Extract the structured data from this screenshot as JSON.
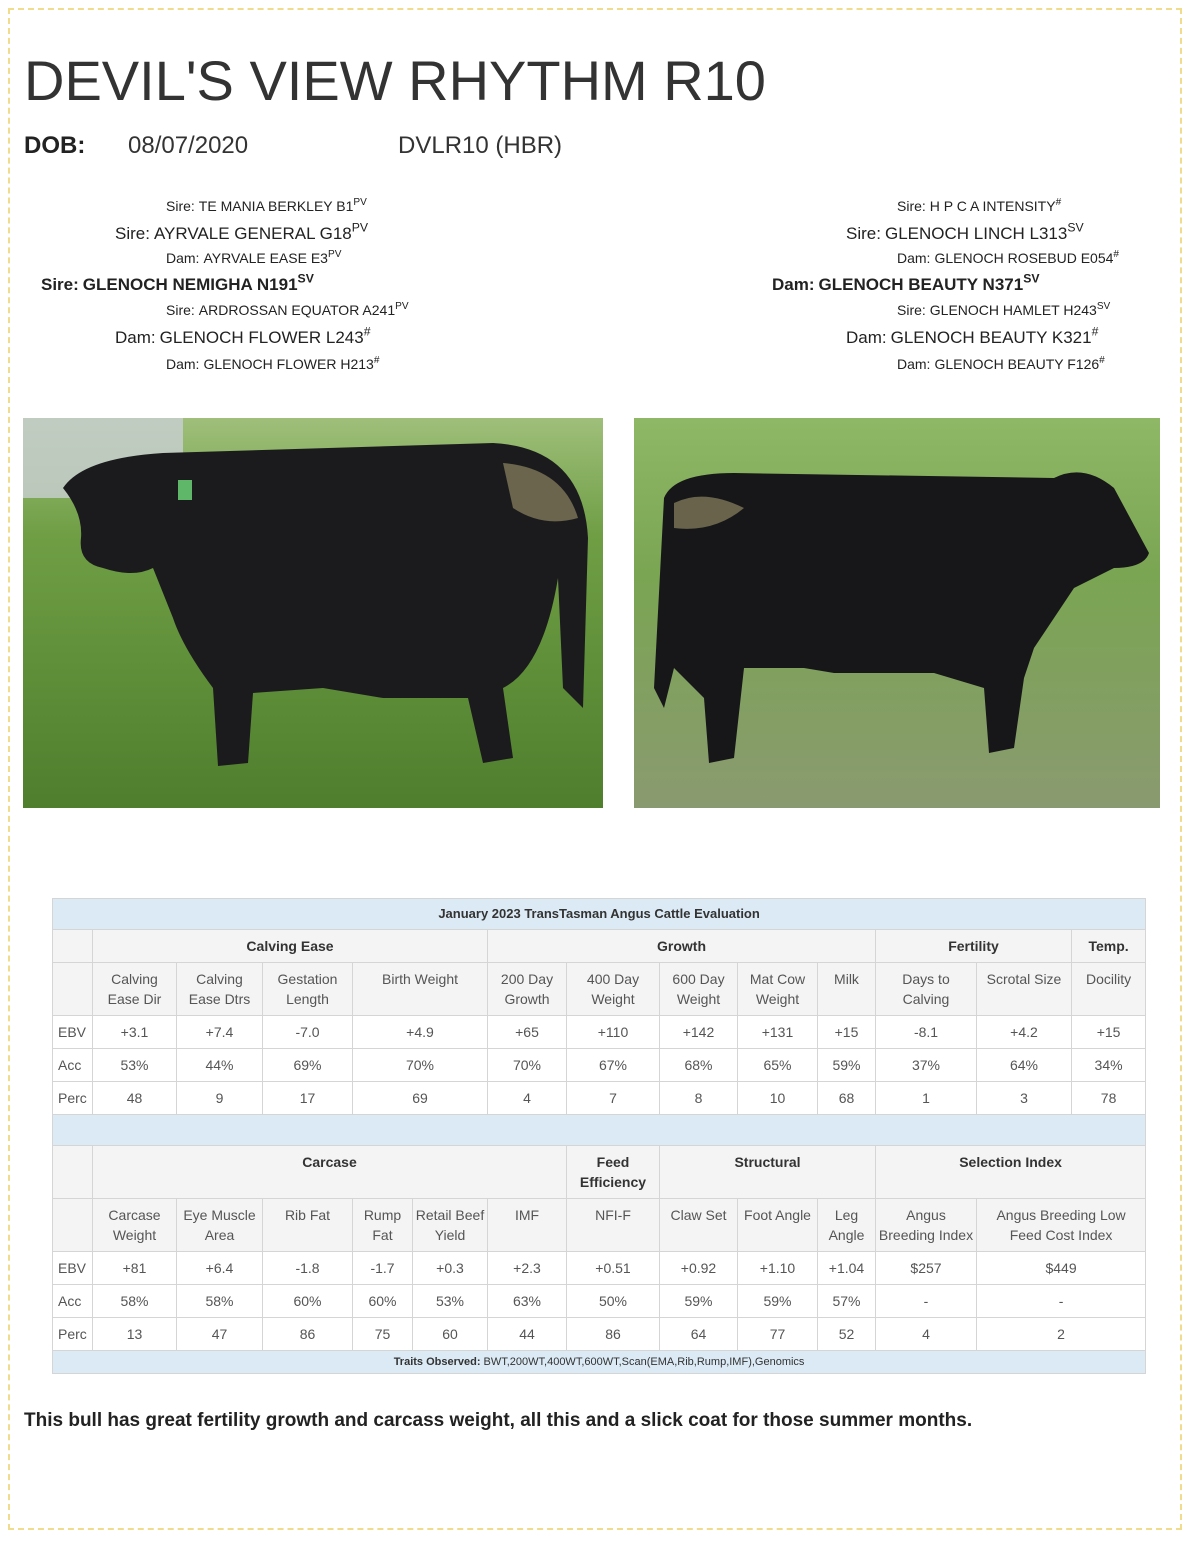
{
  "header": {
    "title": "DEVIL'S VIEW RHYTHM R10",
    "dob_label": "DOB:",
    "dob": "08/07/2020",
    "ident": "DVLR10 (HBR)"
  },
  "pedigree": {
    "left": [
      {
        "label": "Sire:",
        "name": "TE MANIA BERKLEY B1",
        "sup": "PV"
      },
      {
        "label": "Sire:",
        "name": "AYRVALE GENERAL G18",
        "sup": "PV"
      },
      {
        "label": "Dam:",
        "name": "AYRVALE EASE E3",
        "sup": "PV"
      },
      {
        "label": "Sire:",
        "name": "GLENOCH NEMIGHA N191",
        "sup": "SV"
      },
      {
        "label": "Sire:",
        "name": "ARDROSSAN EQUATOR A241",
        "sup": "PV"
      },
      {
        "label": "Dam:",
        "name": "GLENOCH FLOWER L243",
        "sup": "#"
      },
      {
        "label": "Dam:",
        "name": "GLENOCH FLOWER H213",
        "sup": "#"
      }
    ],
    "right": [
      {
        "label": "Sire:",
        "name": "H P C A INTENSITY",
        "sup": "#"
      },
      {
        "label": "Sire:",
        "name": "GLENOCH LINCH L313",
        "sup": "SV"
      },
      {
        "label": "Dam:",
        "name": "GLENOCH ROSEBUD E054",
        "sup": "#"
      },
      {
        "label": "Dam:",
        "name": "GLENOCH BEAUTY N371",
        "sup": "SV"
      },
      {
        "label": "Sire:",
        "name": "GLENOCH HAMLET H243",
        "sup": "SV"
      },
      {
        "label": "Dam:",
        "name": "GLENOCH BEAUTY K321",
        "sup": "#"
      },
      {
        "label": "Dam:",
        "name": "GLENOCH BEAUTY F126",
        "sup": "#"
      }
    ]
  },
  "table": {
    "title": "January 2023 TransTasman Angus Cattle Evaluation",
    "sections": [
      {
        "groups": [
          "Calving Ease",
          "Growth",
          "Fertility",
          "Temp."
        ],
        "columns": [
          "Calving Ease Dir",
          "Calving Ease Dtrs",
          "Gestation Length",
          "Birth Weight",
          "200 Day Growth",
          "400 Day Weight",
          "600 Day Weight",
          "Mat Cow Weight",
          "Milk",
          "Days to Calving",
          "Scrotal Size",
          "Docility"
        ],
        "rows": [
          {
            "label": "EBV",
            "cells": [
              "+3.1",
              "+7.4",
              "-7.0",
              "+4.9",
              "+65",
              "+110",
              "+142",
              "+131",
              "+15",
              "-8.1",
              "+4.2",
              "+15"
            ]
          },
          {
            "label": "Acc",
            "cells": [
              "53%",
              "44%",
              "69%",
              "70%",
              "70%",
              "67%",
              "68%",
              "65%",
              "59%",
              "37%",
              "64%",
              "34%"
            ]
          },
          {
            "label": "Perc",
            "cells": [
              "48",
              "9",
              "17",
              "69",
              "4",
              "7",
              "8",
              "10",
              "68",
              "1",
              "3",
              "78"
            ]
          }
        ]
      },
      {
        "groups": [
          "Carcase",
          "Feed Efficiency",
          "Structural",
          "Selection Index"
        ],
        "columns": [
          "Carcase Weight",
          "Eye Muscle Area",
          "Rib Fat",
          "Rump Fat",
          "Retail Beef Yield",
          "IMF",
          "NFI-F",
          "Claw Set",
          "Foot Angle",
          "Leg Angle",
          "Angus Breeding Index",
          "Angus Breeding Low Feed Cost Index"
        ],
        "rows": [
          {
            "label": "EBV",
            "cells": [
              "+81",
              "+6.4",
              "-1.8",
              "-1.7",
              "+0.3",
              "+2.3",
              "+0.51",
              "+0.92",
              "+1.10",
              "+1.04",
              "$257",
              "$449"
            ]
          },
          {
            "label": "Acc",
            "cells": [
              "58%",
              "58%",
              "60%",
              "60%",
              "53%",
              "63%",
              "50%",
              "59%",
              "59%",
              "57%",
              "-",
              "-"
            ]
          },
          {
            "label": "Perc",
            "cells": [
              "13",
              "47",
              "86",
              "75",
              "60",
              "44",
              "86",
              "64",
              "77",
              "52",
              "4",
              "2"
            ]
          }
        ]
      }
    ],
    "traits_label": "Traits Observed:",
    "traits": "BWT,200WT,400WT,600WT,Scan(EMA,Rib,Rump,IMF),Genomics"
  },
  "comment": "This bull has great fertility growth and carcass weight, all this and a slick coat for those summer months."
}
